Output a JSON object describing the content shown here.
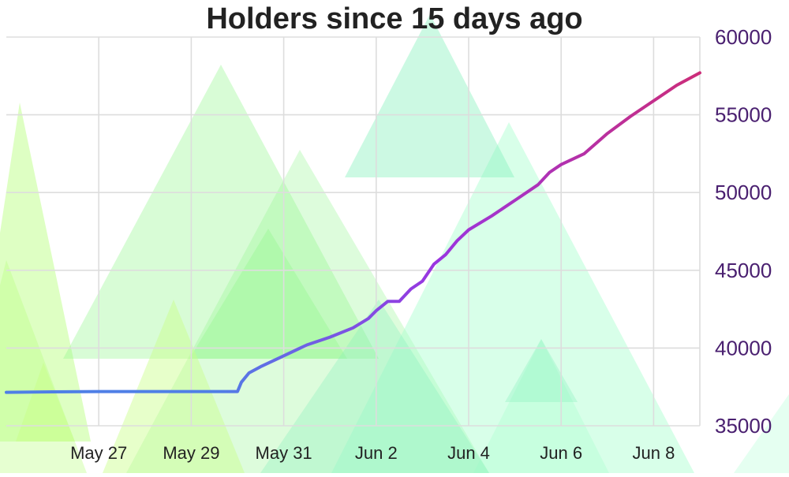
{
  "chart_data": {
    "type": "line",
    "title": "Holders since 15 days ago",
    "xlabel": "",
    "ylabel": "",
    "x_tick_labels": [
      "May 27",
      "May 29",
      "May 31",
      "Jun 2",
      "Jun 4",
      "Jun 6",
      "Jun 8"
    ],
    "y_tick_labels": [
      "35000",
      "40000",
      "45000",
      "50000",
      "55000",
      "60000"
    ],
    "ylim": [
      35000,
      60000
    ],
    "xlim": [
      "2025-05-25T00:00",
      "2025-06-09T00:00"
    ],
    "y_axis_position": "right",
    "grid": true,
    "legend": "none",
    "colors": {
      "line_start": "#4f7fe6",
      "line_mid": "#9a35e0",
      "line_end": "#cc2d79",
      "y_tick_text": "#4a2070",
      "x_tick_text": "#222222",
      "grid": "#dddddd",
      "background_shapes": [
        "#b6ff7a",
        "#8ff58a",
        "#7fefb8",
        "#a8ffcf",
        "#c9ff8a"
      ]
    },
    "x": [
      "2025-05-25T00:00",
      "2025-05-26T00:00",
      "2025-05-27T00:00",
      "2025-05-28T00:00",
      "2025-05-29T00:00",
      "2025-05-30T00:00",
      "2025-05-30T02:00",
      "2025-05-30T06:00",
      "2025-05-30T12:00",
      "2025-05-31T00:00",
      "2025-05-31T12:00",
      "2025-06-01T00:00",
      "2025-06-01T12:00",
      "2025-06-01T20:00",
      "2025-06-02T00:00",
      "2025-06-02T06:00",
      "2025-06-02T12:00",
      "2025-06-02T18:00",
      "2025-06-03T00:00",
      "2025-06-03T06:00",
      "2025-06-03T12:00",
      "2025-06-03T18:00",
      "2025-06-04T00:00",
      "2025-06-04T12:00",
      "2025-06-05T00:00",
      "2025-06-05T12:00",
      "2025-06-05T18:00",
      "2025-06-06T00:00",
      "2025-06-06T12:00",
      "2025-06-07T00:00",
      "2025-06-07T12:00",
      "2025-06-08T00:00",
      "2025-06-08T12:00",
      "2025-06-09T00:00"
    ],
    "series": [
      {
        "values": [
          37150,
          37180,
          37200,
          37200,
          37200,
          37200,
          37800,
          38400,
          38800,
          39500,
          40200,
          40700,
          41300,
          41900,
          42400,
          43000,
          43000,
          43800,
          44300,
          45400,
          46000,
          46900,
          47600,
          48500,
          49500,
          50500,
          51300,
          51800,
          52500,
          53800,
          54900,
          55900,
          56900,
          57700
        ]
      }
    ]
  }
}
